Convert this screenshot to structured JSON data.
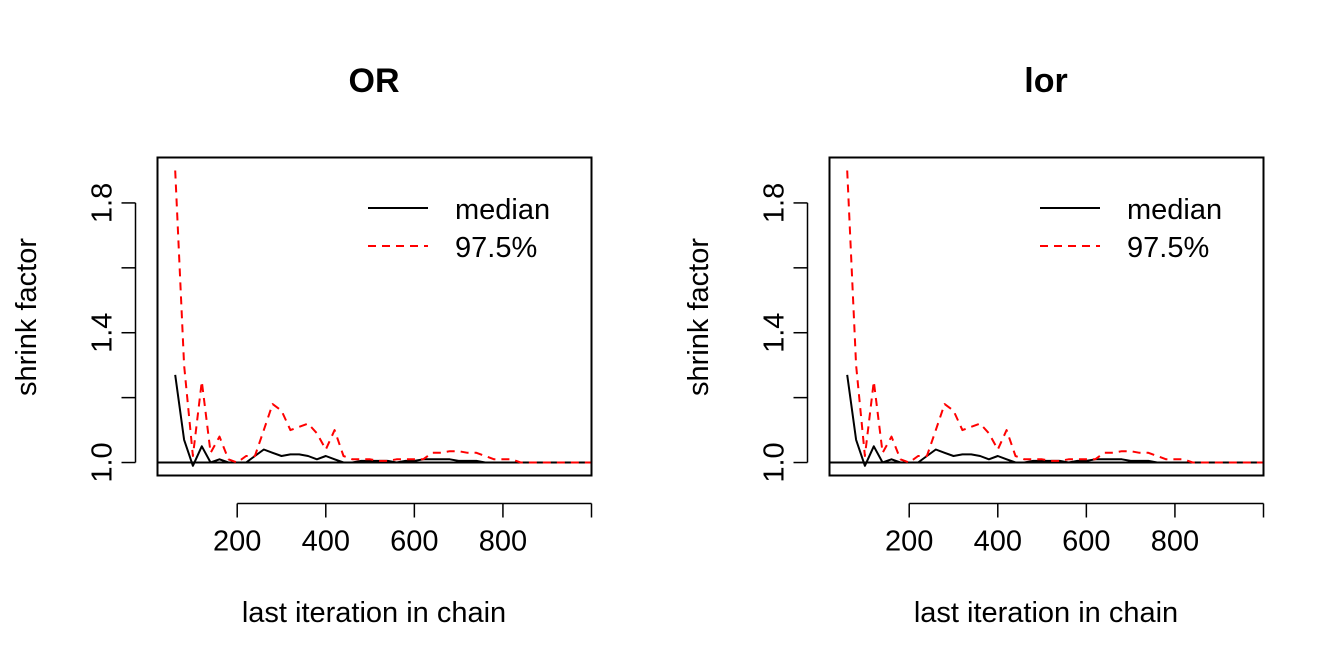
{
  "chart_data": [
    {
      "type": "line",
      "title": "OR",
      "xlabel": "last iteration in chain",
      "ylabel": "shrink factor",
      "xlim": [
        20,
        1000
      ],
      "ylim": [
        0.96,
        1.94
      ],
      "x_ticks": [
        200,
        400,
        600,
        800,
        1000
      ],
      "x_tick_labels": [
        "200",
        "400",
        "600",
        "800",
        ""
      ],
      "y_ticks": [
        1.0,
        1.2,
        1.4,
        1.6,
        1.8
      ],
      "y_tick_labels": [
        "1.0",
        "",
        "1.4",
        "",
        "1.8"
      ],
      "reference_line": 1.0,
      "legend": {
        "position": "top-right",
        "entries": [
          "median",
          "97.5%"
        ]
      },
      "x": [
        60,
        80,
        100,
        120,
        140,
        160,
        180,
        200,
        220,
        240,
        260,
        280,
        300,
        320,
        340,
        360,
        380,
        400,
        420,
        440,
        460,
        480,
        500,
        520,
        540,
        560,
        580,
        600,
        620,
        640,
        660,
        680,
        700,
        720,
        740,
        760,
        780,
        800,
        820,
        840,
        860,
        880,
        900,
        920,
        940,
        960,
        980,
        1000
      ],
      "series": [
        {
          "name": "median",
          "color": "#000000",
          "dash": "solid",
          "values": [
            1.27,
            1.07,
            0.99,
            1.05,
            1.0,
            1.01,
            1.0,
            1.0,
            1.0,
            1.02,
            1.04,
            1.03,
            1.02,
            1.025,
            1.025,
            1.02,
            1.01,
            1.02,
            1.01,
            1.0,
            1.0,
            1.005,
            1.005,
            1.005,
            1.005,
            1.0,
            1.005,
            1.005,
            1.01,
            1.01,
            1.01,
            1.01,
            1.005,
            1.005,
            1.005,
            1.0,
            1.0,
            1.0,
            1.0,
            1.0,
            1.0,
            1.0,
            1.0,
            1.0,
            1.0,
            1.0,
            1.0,
            1.0
          ]
        },
        {
          "name": "97.5%",
          "color": "#ff0000",
          "dash": "dashed",
          "values": [
            1.9,
            1.3,
            1.02,
            1.25,
            1.03,
            1.08,
            1.01,
            1.0,
            1.02,
            1.02,
            1.1,
            1.18,
            1.16,
            1.1,
            1.11,
            1.12,
            1.09,
            1.04,
            1.1,
            1.02,
            1.01,
            1.01,
            1.01,
            1.005,
            1.005,
            1.01,
            1.01,
            1.01,
            1.01,
            1.03,
            1.03,
            1.035,
            1.035,
            1.03,
            1.03,
            1.02,
            1.01,
            1.01,
            1.01,
            1.0,
            1.0,
            1.0,
            1.0,
            1.0,
            1.0,
            1.0,
            1.0,
            1.0
          ]
        }
      ]
    },
    {
      "type": "line",
      "title": "lor",
      "xlabel": "last iteration in chain",
      "ylabel": "shrink factor",
      "xlim": [
        20,
        1000
      ],
      "ylim": [
        0.96,
        1.94
      ],
      "x_ticks": [
        200,
        400,
        600,
        800,
        1000
      ],
      "x_tick_labels": [
        "200",
        "400",
        "600",
        "800",
        ""
      ],
      "y_ticks": [
        1.0,
        1.2,
        1.4,
        1.6,
        1.8
      ],
      "y_tick_labels": [
        "1.0",
        "",
        "1.4",
        "",
        "1.8"
      ],
      "reference_line": 1.0,
      "legend": {
        "position": "top-right",
        "entries": [
          "median",
          "97.5%"
        ]
      },
      "x": [
        60,
        80,
        100,
        120,
        140,
        160,
        180,
        200,
        220,
        240,
        260,
        280,
        300,
        320,
        340,
        360,
        380,
        400,
        420,
        440,
        460,
        480,
        500,
        520,
        540,
        560,
        580,
        600,
        620,
        640,
        660,
        680,
        700,
        720,
        740,
        760,
        780,
        800,
        820,
        840,
        860,
        880,
        900,
        920,
        940,
        960,
        980,
        1000
      ],
      "series": [
        {
          "name": "median",
          "color": "#000000",
          "dash": "solid",
          "values": [
            1.27,
            1.07,
            0.99,
            1.05,
            1.0,
            1.01,
            1.0,
            1.0,
            1.0,
            1.02,
            1.04,
            1.03,
            1.02,
            1.025,
            1.025,
            1.02,
            1.01,
            1.02,
            1.01,
            1.0,
            1.0,
            1.005,
            1.005,
            1.005,
            1.005,
            1.0,
            1.005,
            1.005,
            1.01,
            1.01,
            1.01,
            1.01,
            1.005,
            1.005,
            1.005,
            1.0,
            1.0,
            1.0,
            1.0,
            1.0,
            1.0,
            1.0,
            1.0,
            1.0,
            1.0,
            1.0,
            1.0,
            1.0
          ]
        },
        {
          "name": "97.5%",
          "color": "#ff0000",
          "dash": "dashed",
          "values": [
            1.9,
            1.3,
            1.02,
            1.25,
            1.03,
            1.08,
            1.01,
            1.0,
            1.02,
            1.02,
            1.1,
            1.18,
            1.16,
            1.1,
            1.11,
            1.12,
            1.09,
            1.04,
            1.1,
            1.02,
            1.01,
            1.01,
            1.01,
            1.005,
            1.005,
            1.01,
            1.01,
            1.01,
            1.01,
            1.03,
            1.03,
            1.035,
            1.035,
            1.03,
            1.03,
            1.02,
            1.01,
            1.01,
            1.01,
            1.0,
            1.0,
            1.0,
            1.0,
            1.0,
            1.0,
            1.0,
            1.0,
            1.0
          ]
        }
      ]
    }
  ]
}
